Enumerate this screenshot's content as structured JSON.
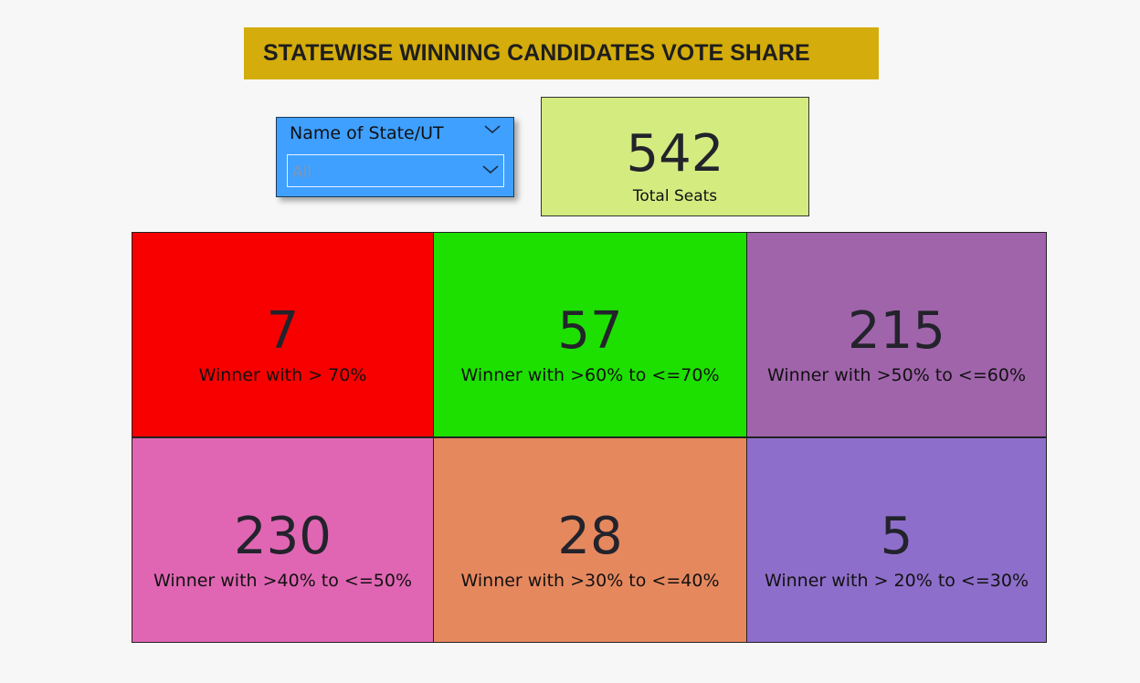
{
  "title": "STATEWISE WINNING CANDIDATES VOTE SHARE",
  "slicer": {
    "header": "Name of State/UT",
    "value": "All"
  },
  "total": {
    "value": "542",
    "label": "Total Seats"
  },
  "tiles": [
    {
      "value": "7",
      "label": "Winner with > 70%",
      "color": "#f80000"
    },
    {
      "value": "57",
      "label": "Winner with >60% to <=70%",
      "color": "#1de000"
    },
    {
      "value": "215",
      "label": "Winner with >50% to <=60%",
      "color": "#a064ab"
    },
    {
      "value": "230",
      "label": "Winner with >40% to <=50%",
      "color": "#e066b3"
    },
    {
      "value": "28",
      "label": "Winner with >30% to <=40%",
      "color": "#e6885e"
    },
    {
      "value": "5",
      "label": "Winner with > 20% to <=30%",
      "color": "#8e6ecb"
    }
  ],
  "colors": {
    "title_banner": "#d4ac0b",
    "slicer_bg": "#3fa0ff",
    "total_card_bg": "#d4eb80",
    "page_bg": "#f7f7f7"
  }
}
